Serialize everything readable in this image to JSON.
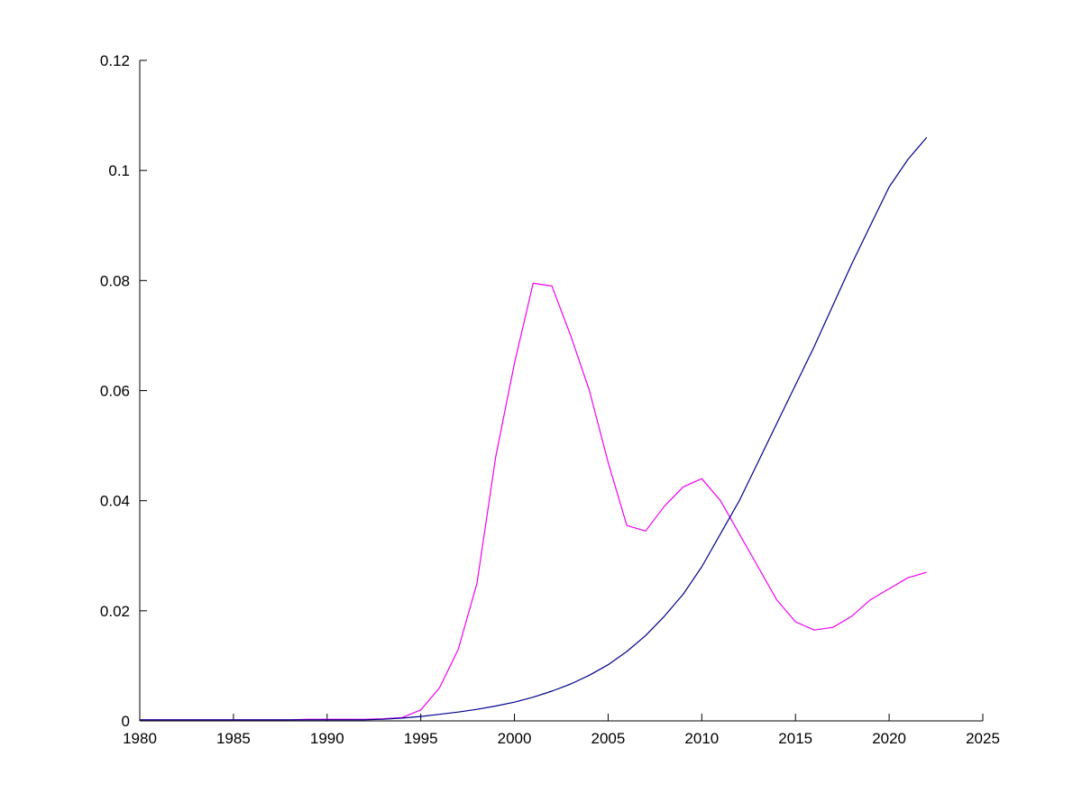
{
  "chart_data": {
    "type": "line",
    "title": "",
    "xlabel": "",
    "ylabel": "",
    "xlim": [
      1980,
      2025
    ],
    "ylim": [
      0,
      0.12
    ],
    "grid": false,
    "legend": "none",
    "xticks": [
      1980,
      1985,
      1990,
      1995,
      2000,
      2005,
      2010,
      2015,
      2020,
      2025
    ],
    "xtick_labels": [
      "1980",
      "1985",
      "1990",
      "1995",
      "2000",
      "2005",
      "2010",
      "2015",
      "2020",
      "2025"
    ],
    "yticks": [
      0,
      0.02,
      0.04,
      0.06,
      0.08,
      0.1,
      0.12
    ],
    "ytick_labels": [
      "0",
      "0.02",
      "0.04",
      "0.06",
      "0.08",
      "0.1",
      "0.12"
    ],
    "x": [
      1980,
      1981,
      1982,
      1983,
      1984,
      1985,
      1986,
      1987,
      1988,
      1989,
      1990,
      1991,
      1992,
      1993,
      1994,
      1995,
      1996,
      1997,
      1998,
      1999,
      2000,
      2001,
      2002,
      2003,
      2004,
      2005,
      2006,
      2007,
      2008,
      2009,
      2010,
      2011,
      2012,
      2013,
      2014,
      2015,
      2016,
      2017,
      2018,
      2019,
      2020,
      2021,
      2022
    ],
    "series": [
      {
        "name": "magenta-series",
        "color": "#f000f0",
        "values": [
          0.0002,
          0.0002,
          0.0002,
          0.0002,
          0.0002,
          0.0002,
          0.0002,
          0.0002,
          0.0002,
          0.0003,
          0.0003,
          0.0003,
          0.0003,
          0.0004,
          0.0006,
          0.002,
          0.006,
          0.013,
          0.025,
          0.048,
          0.065,
          0.0795,
          0.079,
          0.07,
          0.06,
          0.047,
          0.0355,
          0.0345,
          0.039,
          0.0425,
          0.044,
          0.04,
          0.034,
          0.028,
          0.022,
          0.018,
          0.0165,
          0.017,
          0.019,
          0.022,
          0.024,
          0.026,
          0.027
        ]
      },
      {
        "name": "blue-series",
        "color": "#00008b",
        "values": [
          0.0002,
          0.0002,
          0.0002,
          0.0002,
          0.0002,
          0.0002,
          0.0002,
          0.0002,
          0.0002,
          0.0002,
          0.0002,
          0.0002,
          0.0002,
          0.0003,
          0.0005,
          0.0008,
          0.0012,
          0.0016,
          0.0021,
          0.0027,
          0.0034,
          0.0043,
          0.0054,
          0.0067,
          0.0083,
          0.0102,
          0.0126,
          0.0155,
          0.019,
          0.023,
          0.028,
          0.034,
          0.04,
          0.047,
          0.054,
          0.061,
          0.068,
          0.0755,
          0.083,
          0.09,
          0.097,
          0.102,
          0.106
        ]
      }
    ]
  },
  "style": {
    "background_color": "#ffffff",
    "axis_color": "#000000"
  }
}
